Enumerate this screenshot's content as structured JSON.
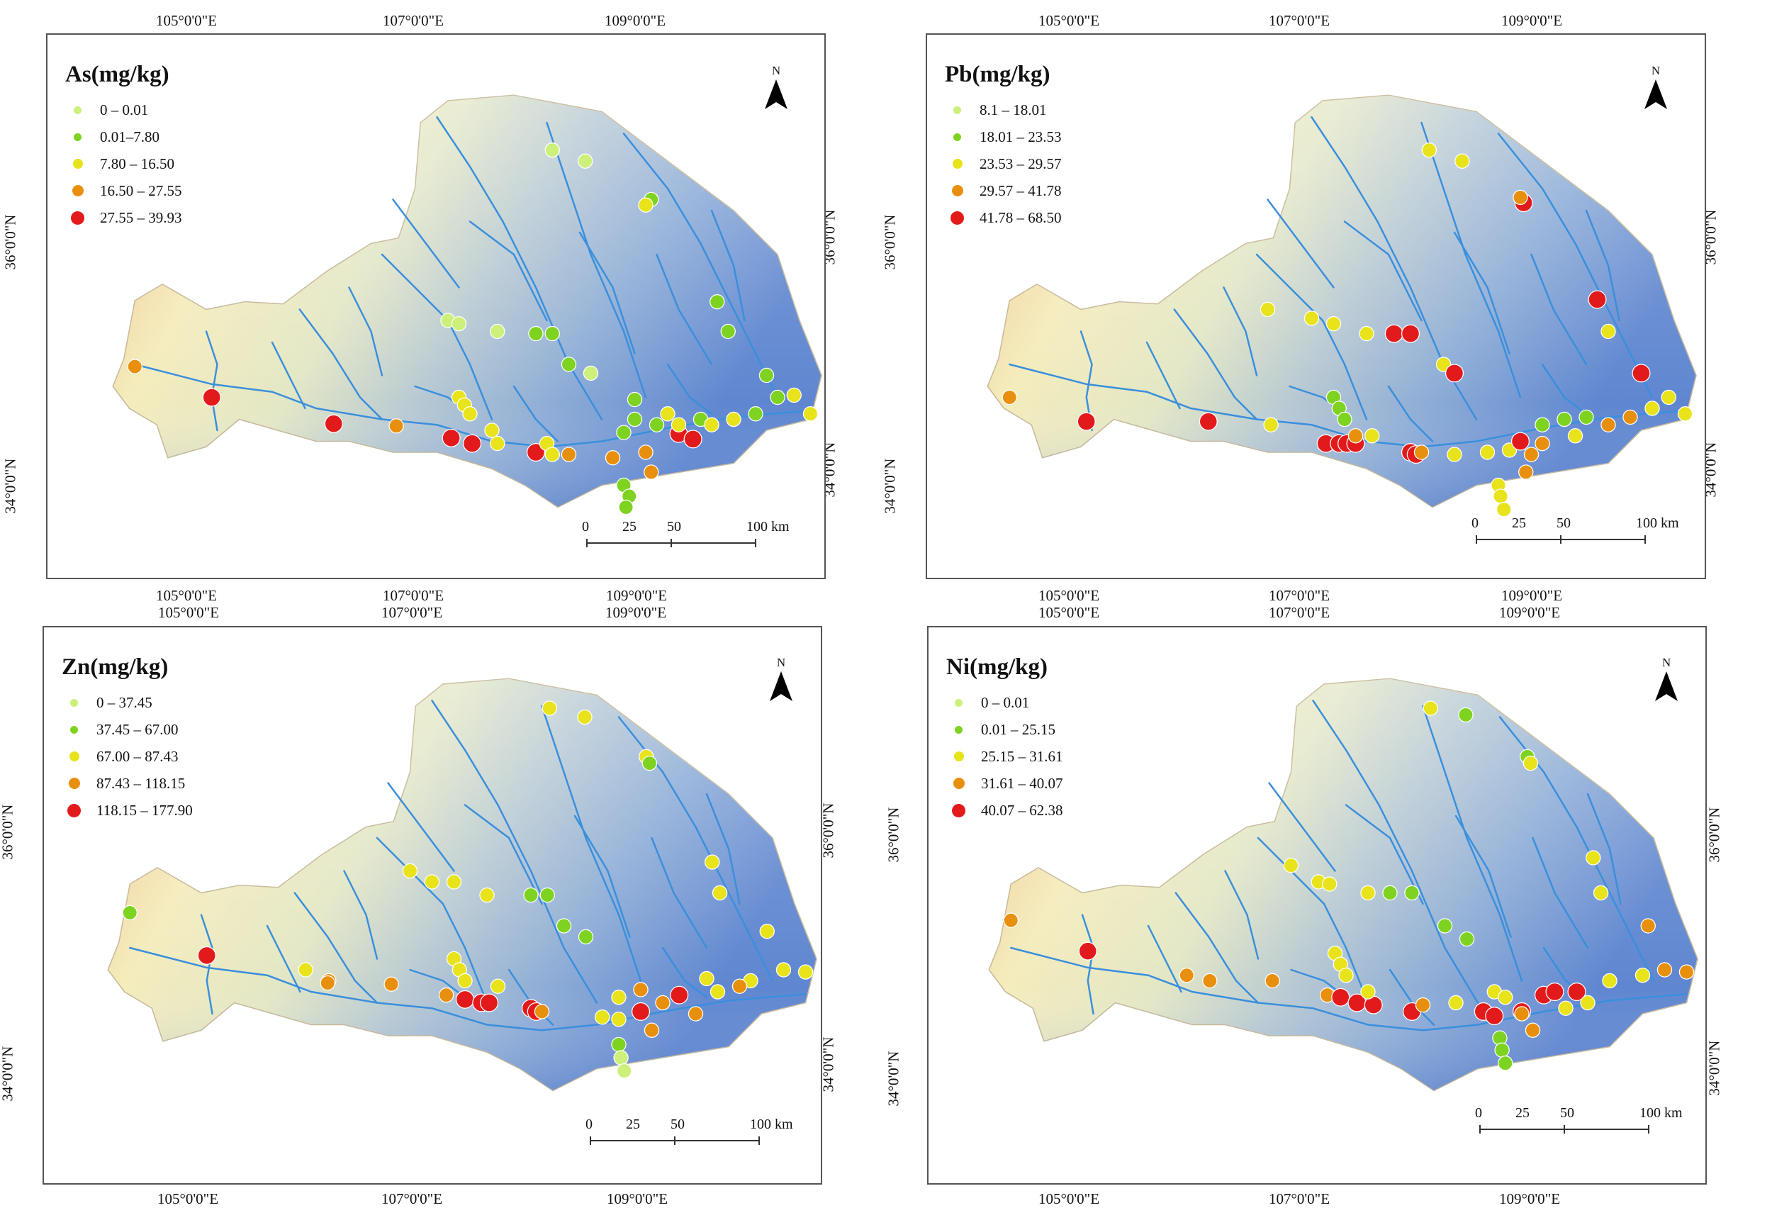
{
  "shared": {
    "lon_labels": [
      "105°0'0\"E",
      "107°0'0\"E",
      "109°0'0\"E"
    ],
    "lat_labels": [
      "36°0'0\"N",
      "34°0'0\"N"
    ],
    "north_label": "N",
    "scale_labels": [
      "0",
      "25",
      "50",
      "100 km"
    ],
    "colors": {
      "c1": "#ccf07a",
      "c2": "#7ed321",
      "c3": "#e8e31a",
      "c4": "#e8900d",
      "c5": "#e31a1c",
      "river": "#3a8fdc"
    }
  },
  "panels": [
    {
      "id": "as",
      "title": "As(mg/kg)",
      "classes": [
        "0 – 0.01",
        "0.01–7.80",
        "7.80 – 16.50",
        "16.50 – 27.55",
        "27.55 – 39.93"
      ]
    },
    {
      "id": "pb",
      "title": "Pb(mg/kg)",
      "classes": [
        "8.1 – 18.01",
        "18.01 – 23.53",
        "23.53 – 29.57",
        "29.57 – 41.78",
        "41.78 – 68.50"
      ]
    },
    {
      "id": "zn",
      "title": "Zn(mg/kg)",
      "classes": [
        "0 – 37.45",
        "37.45 – 67.00",
        "67.00 – 87.43",
        "87.43 – 118.15",
        "118.15 – 177.90"
      ]
    },
    {
      "id": "ni",
      "title": "Ni(mg/kg)",
      "classes": [
        "0 – 0.01",
        "0.01 – 25.15",
        "25.15 – 31.61",
        "31.61 – 40.07",
        "40.07 – 62.38"
      ]
    }
  ]
}
